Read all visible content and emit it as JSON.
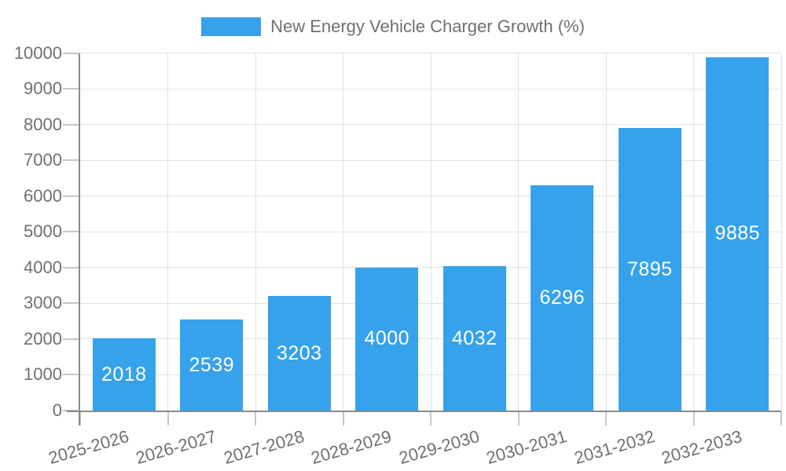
{
  "legend": {
    "label": "New Energy Vehicle Charger Growth (%)"
  },
  "chart_data": {
    "type": "bar",
    "title": "",
    "categories": [
      "2025-2026",
      "2026-2027",
      "2027-2028",
      "2028-2029",
      "2029-2030",
      "2030-2031",
      "2031-2032",
      "2032-2033"
    ],
    "series": [
      {
        "name": "New Energy Vehicle Charger Growth (%)",
        "values": [
          2018,
          2539,
          3203,
          4000,
          4032,
          6296,
          7895,
          9885
        ]
      }
    ],
    "xlabel": "",
    "ylabel": "",
    "ylim": [
      0,
      10000
    ],
    "yticks": [
      0,
      1000,
      2000,
      3000,
      4000,
      5000,
      6000,
      7000,
      8000,
      9000,
      10000
    ],
    "grid": true,
    "legend_position": "top-center",
    "bar_value_labels": "inside-center",
    "x_tick_rotation_deg": -16,
    "colors": {
      "bar": "#36A2EB",
      "bar_value_label": "#FFFFFF",
      "axis_text": "#707070",
      "axis_line": "#8A8A8A",
      "tick_mark": "#C6C6C6",
      "gridline": "#E3E3E3",
      "background": "#FFFFFF"
    }
  }
}
